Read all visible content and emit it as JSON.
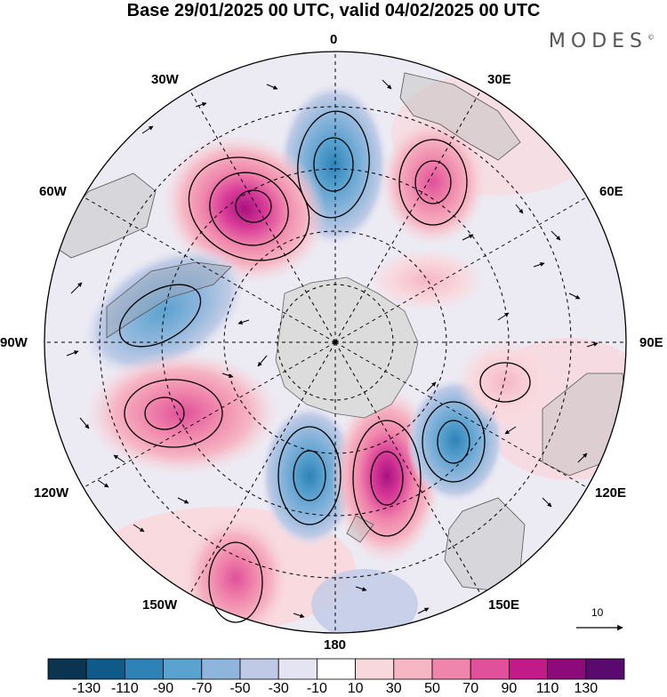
{
  "title": "Base 29/01/2025 00 UTC, valid 04/02/2025 00 UTC",
  "brand": "MODES",
  "brand_mark": "©",
  "longitude_labels": {
    "lon_0": "0",
    "lon_30e": "30E",
    "lon_60e": "60E",
    "lon_90e": "90E",
    "lon_120e": "120E",
    "lon_150e": "150E",
    "lon_180": "180",
    "lon_150w": "150W",
    "lon_120w": "120W",
    "lon_90w": "90W",
    "lon_60w": "60W",
    "lon_30w": "30W"
  },
  "reference_vector": {
    "value": "10"
  },
  "colorbar": {
    "colors": [
      "#0b3450",
      "#0f5a88",
      "#2f82b8",
      "#5aa2cf",
      "#8eb6dc",
      "#bfcbe6",
      "#e4e4f2",
      "#ffffff",
      "#f9d8dd",
      "#f6b6c4",
      "#f085ab",
      "#e0509b",
      "#c21b89",
      "#8c0a7a",
      "#5a0a6e"
    ],
    "tick_labels": [
      "-130",
      "-110",
      "-90",
      "-70",
      "-50",
      "-30",
      "-10",
      "10",
      "30",
      "50",
      "70",
      "90",
      "110",
      "130"
    ]
  },
  "anomaly_centers": [
    {
      "sign": "negative",
      "strength": 80,
      "lon_deg": 0
    },
    {
      "sign": "positive",
      "strength": 70,
      "lon_deg": 30
    },
    {
      "sign": "positive",
      "strength": 110,
      "lon_deg": -45
    },
    {
      "sign": "negative",
      "strength": 65,
      "lon_deg": -75
    },
    {
      "sign": "positive",
      "strength": 85,
      "lon_deg": -120
    },
    {
      "sign": "negative",
      "strength": 75,
      "lon_deg": -170
    },
    {
      "sign": "positive",
      "strength": 110,
      "lon_deg": 160
    },
    {
      "sign": "negative",
      "strength": 80,
      "lon_deg": 130
    },
    {
      "sign": "positive",
      "strength": 40,
      "lon_deg": 95
    },
    {
      "sign": "positive",
      "strength": 40,
      "lon_deg": 60
    },
    {
      "sign": "positive",
      "strength": 70,
      "lon_deg": -155
    }
  ]
}
